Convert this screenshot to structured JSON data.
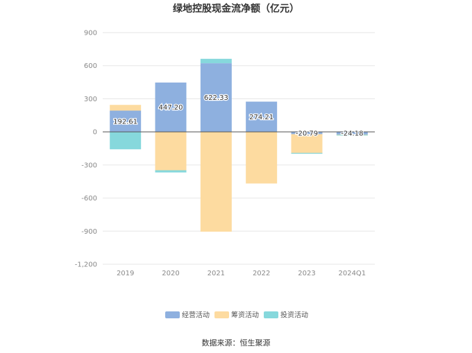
{
  "chart_data": {
    "type": "bar",
    "stacked": true,
    "title": "绿地控股现金流净额（亿元）",
    "categories": [
      "2019",
      "2020",
      "2021",
      "2022",
      "2023",
      "2024Q1"
    ],
    "series": [
      {
        "name": "经营活动",
        "color": "#8eb0df",
        "values": [
          192.61,
          447.2,
          622.33,
          274.21,
          -20.79,
          -24.18
        ]
      },
      {
        "name": "筹资活动",
        "color": "#fddba0",
        "values": [
          52,
          -348,
          -905,
          -468,
          -170,
          -3
        ]
      },
      {
        "name": "投资活动",
        "color": "#86d8dc",
        "values": [
          -158,
          -20,
          40,
          0,
          -8,
          -4
        ]
      }
    ],
    "data_labels": [
      "192.61",
      "447.20",
      "622.33",
      "274.21",
      "-20.79",
      "-24.18"
    ],
    "ylim": [
      -1200,
      900
    ],
    "yticks": [
      900,
      600,
      300,
      0,
      -300,
      -600,
      -900,
      -1200
    ],
    "ytick_labels": [
      "900",
      "600",
      "300",
      "0",
      "-300",
      "-600",
      "-900",
      "-1,200"
    ],
    "grid": true,
    "legend_position": "bottom",
    "xlabel": "",
    "ylabel": ""
  },
  "footer": {
    "source": "数据来源：恒生聚源"
  }
}
